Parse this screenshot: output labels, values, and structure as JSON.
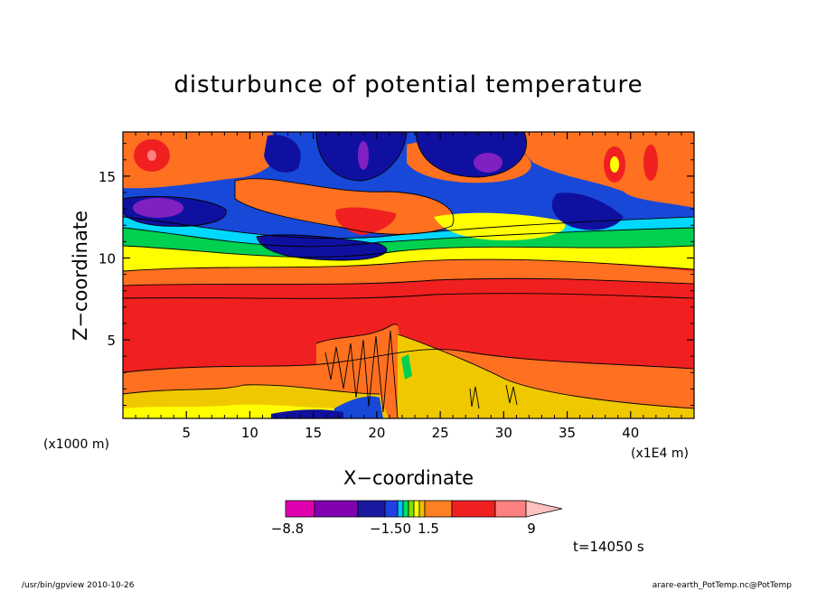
{
  "chart_data": {
    "type": "heatmap",
    "title": "disturbunce of potential temperature",
    "xlabel": "X−coordinate",
    "ylabel": "Z−coordinate",
    "x_unit": "(x1E4 m)",
    "y_unit": "(x1000 m)",
    "xlim": [
      0,
      45
    ],
    "ylim": [
      0.2,
      17.7
    ],
    "x_ticks": [
      5,
      10,
      15,
      20,
      25,
      30,
      35,
      40
    ],
    "y_ticks": [
      5,
      10,
      15
    ],
    "colorbar": {
      "tick_labels": [
        "−8.8",
        "−1.50",
        "1.5",
        "9"
      ],
      "colors": [
        "#e000b0",
        "#8000b0",
        "#1818a0",
        "#2040e0",
        "#00c0ff",
        "#00e060",
        "#80e000",
        "#ffff00",
        "#f0c000",
        "#ff8020",
        "#f02020",
        "#ff8080",
        "#ffc0c0"
      ]
    },
    "field_colors": {
      "strong_neg": "#1010a0",
      "neg": "#1848d8",
      "weak_neg": "#00d8ff",
      "near_zero": "#00d050",
      "weak_pos1": "#a0e000",
      "weak_pos2": "#ffff00",
      "weak_pos3": "#f0c800",
      "pos": "#ff7020",
      "strong_pos": "#f02020",
      "max_pos": "#ff8080",
      "min_neg": "#8020c0"
    },
    "time_label": "t=14050 s",
    "footer_left": "/usr/bin/gpview   2010-10-26",
    "footer_right": "arare-earth_PotTemp.nc@PotTemp"
  }
}
